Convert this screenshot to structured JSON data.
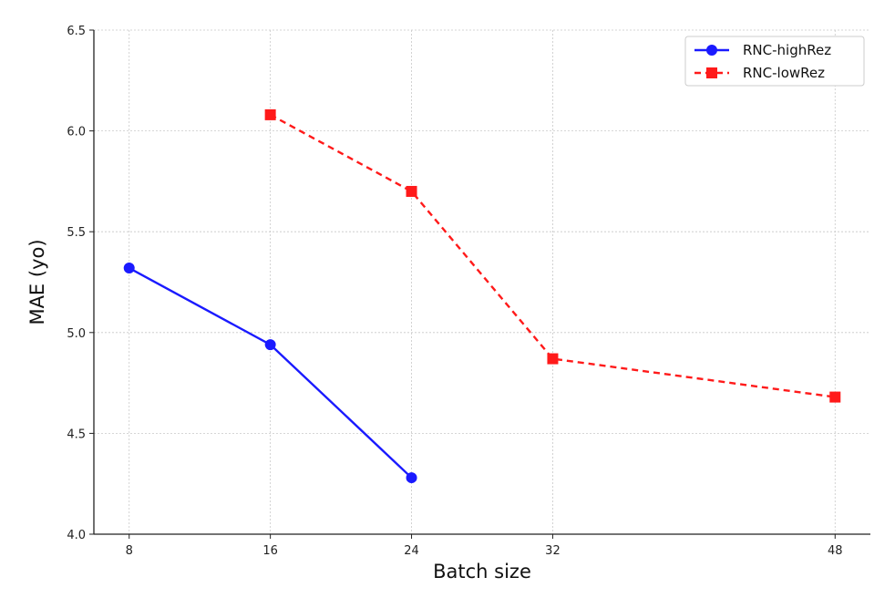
{
  "chart_data": {
    "type": "line",
    "title": "",
    "xlabel": "Batch size",
    "ylabel": "MAE (yo)",
    "x_ticks": [
      8,
      16,
      24,
      32,
      48
    ],
    "y_ticks": [
      "4.0",
      "4.5",
      "5.0",
      "5.5",
      "6.0",
      "6.5"
    ],
    "xlim": [
      6,
      50
    ],
    "ylim": [
      4.0,
      6.5
    ],
    "grid": true,
    "legend_position": "top-right",
    "series": [
      {
        "name": "RNC-highRez",
        "color": "#1a1aff",
        "marker": "circle",
        "line_style": "solid",
        "points": [
          {
            "x": 8,
            "y": 5.32
          },
          {
            "x": 16,
            "y": 4.94
          },
          {
            "x": 24,
            "y": 4.28
          }
        ]
      },
      {
        "name": "RNC-lowRez",
        "color": "#ff1a1a",
        "marker": "square",
        "line_style": "dashed",
        "points": [
          {
            "x": 16,
            "y": 6.08
          },
          {
            "x": 24,
            "y": 5.7
          },
          {
            "x": 32,
            "y": 4.87
          },
          {
            "x": 48,
            "y": 4.68
          }
        ]
      }
    ]
  }
}
